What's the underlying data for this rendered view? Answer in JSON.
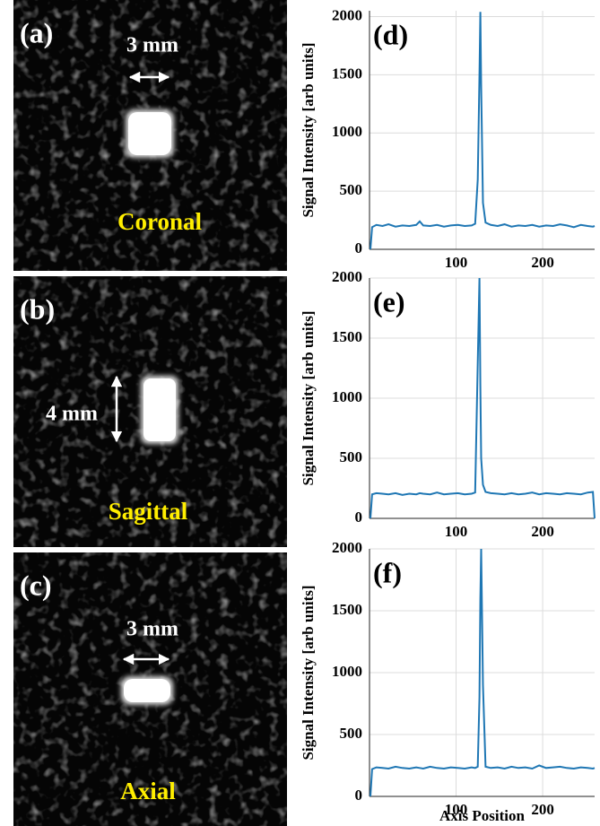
{
  "panels": [
    {
      "label": "(a)",
      "scale": "3 mm",
      "view": "Coronal"
    },
    {
      "label": "(b)",
      "scale": "4 mm",
      "view": "Sagittal"
    },
    {
      "label": "(c)",
      "scale": "3 mm",
      "view": "Axial"
    }
  ],
  "chart_data": [
    {
      "type": "line",
      "label": "(d)",
      "ylabel": "Signal Intensity [arb units]",
      "x": [
        1,
        3,
        8,
        15,
        22,
        30,
        38,
        46,
        54,
        58,
        62,
        70,
        78,
        86,
        94,
        102,
        110,
        118,
        122,
        125,
        127,
        128,
        129,
        131,
        134,
        140,
        148,
        156,
        164,
        172,
        180,
        188,
        196,
        204,
        212,
        220,
        228,
        236,
        244,
        252,
        258,
        260
      ],
      "values": [
        0,
        190,
        210,
        200,
        215,
        195,
        205,
        200,
        210,
        240,
        205,
        200,
        210,
        195,
        205,
        210,
        200,
        205,
        220,
        600,
        1500,
        2040,
        1400,
        400,
        230,
        210,
        200,
        215,
        195,
        205,
        200,
        210,
        195,
        205,
        200,
        215,
        205,
        190,
        210,
        200,
        195,
        200
      ],
      "color": "#1f77b4",
      "xlim": [
        0,
        260
      ],
      "xticks": [
        100,
        200
      ],
      "ylim": [
        0,
        2050
      ],
      "yticks": [
        0,
        500,
        1000,
        1500,
        2000
      ],
      "grid": true
    },
    {
      "type": "line",
      "label": "(e)",
      "ylabel": "Signal Intensity [arb units]",
      "x": [
        1,
        3,
        8,
        15,
        22,
        30,
        38,
        46,
        54,
        58,
        62,
        70,
        78,
        86,
        94,
        102,
        110,
        118,
        122,
        125,
        127,
        128,
        129,
        131,
        134,
        140,
        148,
        156,
        164,
        172,
        180,
        188,
        196,
        204,
        212,
        220,
        228,
        236,
        244,
        252,
        258,
        260
      ],
      "values": [
        0,
        200,
        210,
        205,
        200,
        210,
        195,
        205,
        200,
        210,
        205,
        200,
        215,
        200,
        205,
        210,
        200,
        205,
        215,
        1300,
        2000,
        1100,
        500,
        280,
        220,
        210,
        205,
        200,
        210,
        200,
        205,
        215,
        200,
        210,
        205,
        200,
        210,
        205,
        200,
        215,
        220,
        0
      ],
      "color": "#1f77b4",
      "xlim": [
        0,
        260
      ],
      "xticks": [
        100,
        200
      ],
      "ylim": [
        0,
        2000
      ],
      "yticks": [
        0,
        500,
        1000,
        1500,
        2000
      ],
      "grid": true
    },
    {
      "type": "line",
      "label": "(f)",
      "ylabel": "Signal Intensity [arb units]",
      "xlabel": "Axis Position",
      "x": [
        1,
        3,
        8,
        15,
        22,
        30,
        38,
        46,
        54,
        58,
        62,
        70,
        78,
        86,
        94,
        102,
        110,
        118,
        122,
        125,
        127,
        128,
        129,
        131,
        134,
        140,
        148,
        156,
        164,
        172,
        180,
        188,
        196,
        204,
        212,
        220,
        228,
        236,
        244,
        252,
        258,
        260
      ],
      "values": [
        0,
        220,
        235,
        230,
        225,
        240,
        230,
        225,
        235,
        230,
        225,
        240,
        230,
        225,
        235,
        230,
        225,
        235,
        230,
        240,
        800,
        1600,
        2000,
        900,
        240,
        230,
        235,
        225,
        240,
        230,
        235,
        225,
        250,
        230,
        235,
        240,
        230,
        225,
        235,
        230,
        225,
        230
      ],
      "color": "#1f77b4",
      "xlim": [
        0,
        260
      ],
      "xticks": [
        100,
        200
      ],
      "ylim": [
        0,
        2000
      ],
      "yticks": [
        0,
        500,
        1000,
        1500,
        2000
      ],
      "grid": true
    }
  ]
}
